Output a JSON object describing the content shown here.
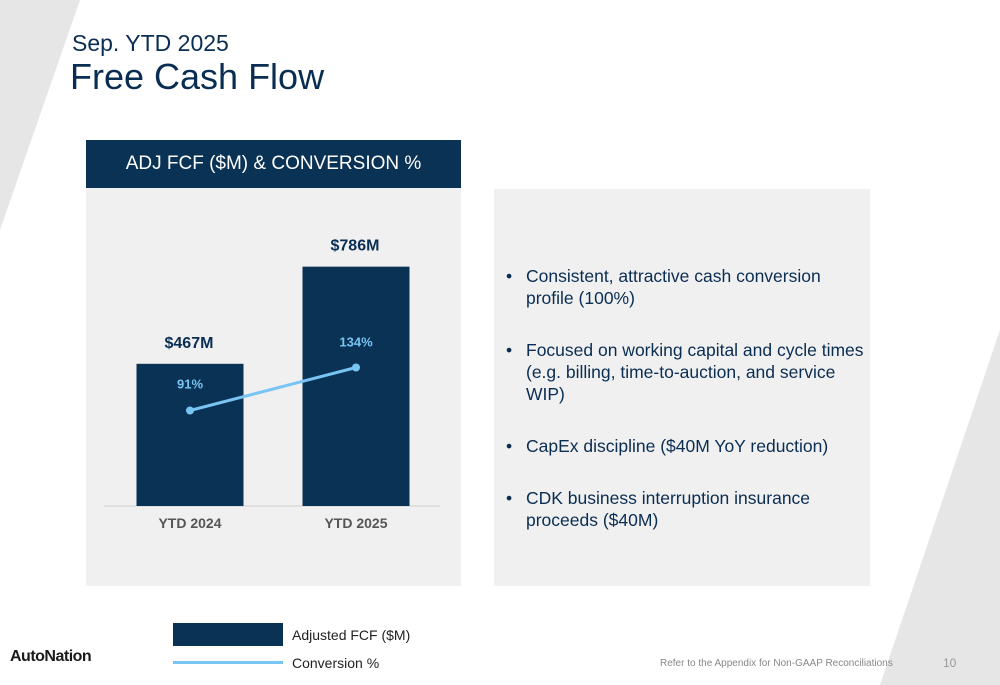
{
  "slide": {
    "kicker": "Sep. YTD 2025",
    "title": "Free Cash Flow",
    "chart_header": "ADJ FCF ($M) & CONVERSION %",
    "bullets": [
      "Consistent, attractive cash conversion profile (100%)",
      "Focused on working capital and cycle times (e.g. billing, time-to-auction, and service WIP)",
      "CapEx discipline ($40M YoY reduction)",
      "CDK business interruption insurance proceeds ($40M)"
    ],
    "bullet_glyph": "•",
    "legend": {
      "bar_label": "Adjusted FCF ($M)",
      "line_label": "Conversion %"
    },
    "logo_text": "AutoNation",
    "footnote": "Refer to the Appendix for Non-GAAP Reconciliations",
    "page_number": "10"
  },
  "colors": {
    "bar": "#0a3254",
    "line": "#78c4f2",
    "title": "#0a2d52",
    "panel": "#f0f0f0"
  },
  "chart_data": {
    "type": "bar",
    "title": "ADJ FCF ($M) & CONVERSION %",
    "categories": [
      "YTD 2024",
      "YTD 2025"
    ],
    "series": [
      {
        "name": "Adjusted FCF ($M)",
        "type": "bar",
        "values": [
          467,
          786
        ],
        "labels": [
          "$467M",
          "$786M"
        ]
      },
      {
        "name": "Conversion %",
        "type": "line",
        "values": [
          91,
          134
        ],
        "labels": [
          "91%",
          "134%"
        ]
      }
    ],
    "legend_position": "bottom",
    "grid": false
  }
}
